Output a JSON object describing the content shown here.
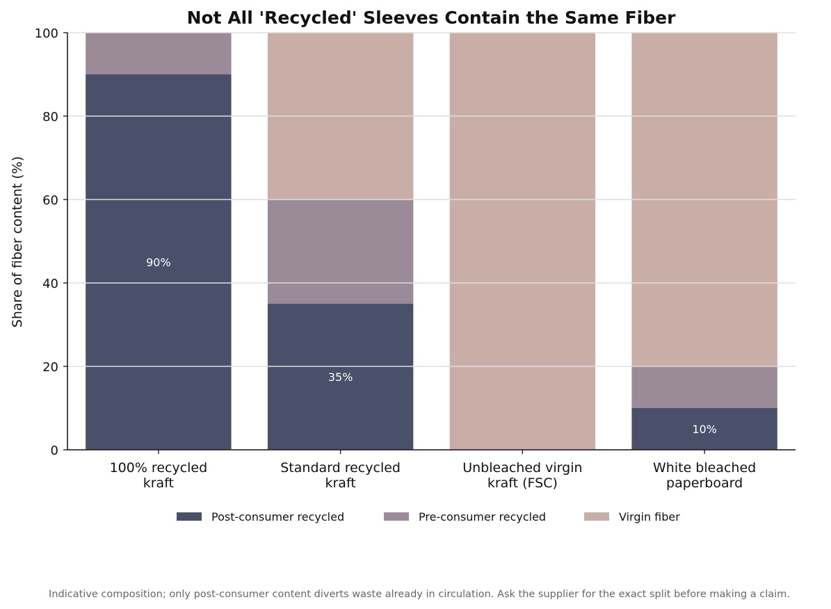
{
  "chart_data": {
    "type": "bar",
    "stacked": true,
    "title": "Not All 'Recycled' Sleeves Contain the Same Fiber",
    "xlabel": "",
    "ylabel": "Share of fiber content (%)",
    "ylim": [
      0,
      100
    ],
    "yticks": [
      0,
      20,
      40,
      60,
      80,
      100
    ],
    "grid": true,
    "legend_position": "bottom",
    "categories": [
      [
        "100% recycled",
        "kraft"
      ],
      [
        "Standard recycled",
        "kraft"
      ],
      [
        "Unbleached virgin",
        "kraft (FSC)"
      ],
      [
        "White bleached",
        "paperboard"
      ]
    ],
    "series": [
      {
        "name": "Post-consumer recycled",
        "color": "#4a4f6a",
        "values": [
          90,
          35,
          0,
          10
        ]
      },
      {
        "name": "Pre-consumer recycled",
        "color": "#9b8b99",
        "values": [
          10,
          25,
          0,
          10
        ]
      },
      {
        "name": "Virgin fiber",
        "color": "#c8aea7",
        "values": [
          0,
          40,
          100,
          80
        ]
      }
    ],
    "data_labels": [
      "90%",
      "35%",
      "",
      "10%"
    ],
    "footnote": "Indicative composition; only post-consumer content diverts waste already in circulation. Ask the supplier for the exact split before making a claim."
  }
}
